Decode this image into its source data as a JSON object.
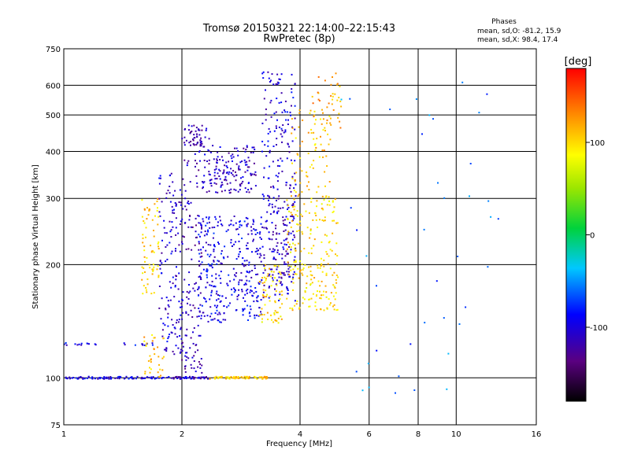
{
  "chart_data": {
    "type": "scatter",
    "title": "Tromsø 20150321 22:14:00–22:15:43",
    "subtitle": "RwPretec (8p)",
    "xlabel": "Frequency [MHz]",
    "ylabel": "Stationary phase Virtual Height [km]",
    "x_scale": "log",
    "y_scale": "log",
    "xlim": [
      1,
      16
    ],
    "ylim": [
      75,
      750
    ],
    "x_ticks": [
      1,
      2,
      4,
      6,
      8,
      10,
      16
    ],
    "x_tick_labels": [
      "1",
      "2",
      "4",
      "6",
      "8",
      "10",
      "16"
    ],
    "y_ticks": [
      75,
      100,
      200,
      300,
      400,
      500,
      600,
      750
    ],
    "y_tick_labels": [
      "75",
      "100",
      "200",
      "300",
      "400",
      "500",
      "600",
      "750"
    ],
    "grid": true,
    "stats": {
      "heading": "Phases",
      "line_o": "mean, sd,O: -81.2, 15.9",
      "line_x": "mean, sd,X:  98.4, 17.4"
    },
    "colorbar": {
      "unit": "[deg]",
      "range": [
        -180,
        180
      ],
      "ticks": [
        100,
        0,
        -100
      ],
      "tick_labels": [
        "100",
        "0",
        "-100"
      ]
    },
    "trace_groups": [
      {
        "f": [
          1.0,
          1.9
        ],
        "h": [
          100,
          100
        ],
        "phase": -100,
        "n": 90
      },
      {
        "f": [
          1.9,
          2.35
        ],
        "h": [
          100,
          100
        ],
        "phase": -105,
        "n": 45
      },
      {
        "f": [
          2.35,
          3.3
        ],
        "h": [
          100,
          100
        ],
        "phase": 105,
        "n": 70
      },
      {
        "f": [
          1.0,
          1.7
        ],
        "h": [
          122,
          124
        ],
        "phase": -95,
        "n": 25
      },
      {
        "f": [
          1.58,
          1.75
        ],
        "h": [
          165,
          300
        ],
        "phase": 105,
        "n": 70
      },
      {
        "f": [
          1.6,
          1.8
        ],
        "h": [
          100,
          130
        ],
        "phase": 110,
        "n": 35
      },
      {
        "f": [
          1.75,
          2.0
        ],
        "h": [
          115,
          350
        ],
        "phase": -105,
        "n": 140
      },
      {
        "f": [
          2.0,
          2.25
        ],
        "h": [
          100,
          470
        ],
        "phase": -115,
        "n": 160
      },
      {
        "f": [
          2.2,
          3.2
        ],
        "h": [
          140,
          270
        ],
        "phase": -95,
        "n": 330
      },
      {
        "f": [
          2.25,
          3.1
        ],
        "h": [
          310,
          415
        ],
        "phase": -110,
        "n": 160
      },
      {
        "f": [
          2.1,
          2.35
        ],
        "h": [
          410,
          470
        ],
        "phase": -120,
        "n": 35
      },
      {
        "f": [
          3.2,
          3.9
        ],
        "h": [
          160,
          330
        ],
        "phase": -110,
        "n": 190
      },
      {
        "f": [
          3.2,
          3.9
        ],
        "h": [
          330,
          650
        ],
        "phase": -100,
        "n": 110
      },
      {
        "f": [
          3.15,
          3.6
        ],
        "h": [
          140,
          200
        ],
        "phase": 100,
        "n": 70
      },
      {
        "f": [
          3.7,
          5.0
        ],
        "h": [
          150,
          300
        ],
        "phase": 100,
        "n": 220
      },
      {
        "f": [
          3.8,
          4.8
        ],
        "h": [
          300,
          520
        ],
        "phase": 110,
        "n": 80
      },
      {
        "f": [
          4.3,
          5.1
        ],
        "h": [
          460,
          650
        ],
        "phase": 120,
        "n": 40
      },
      {
        "f": [
          5.0,
          13.0
        ],
        "h": [
          90,
          650
        ],
        "phase": -60,
        "n": 40
      }
    ]
  }
}
